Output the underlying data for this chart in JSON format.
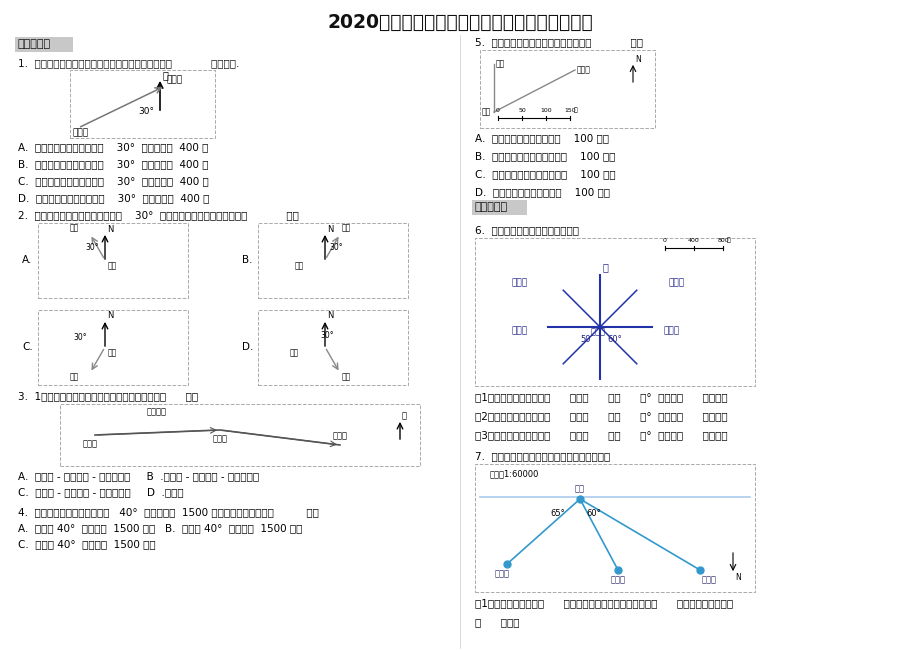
{
  "title": "2020年苏教版数学六年级下册第五单元复习试题",
  "bg_color": "#ffffff",
  "text_color": "#000000",
  "section1_label": "一、选择题",
  "section2_label": "二、填空题",
  "q1_text": "1.  如图，小明家与小红家的方向距离描述正确的是（            ）小明家.",
  "q1_A": "A.  小明：小红在我家西偏南    30°  的方向距离  400 米",
  "q1_B": "B.  小明：小红在我家南偏西    30°  的方向距离  400 米",
  "q1_C": "C.  小红：小明在我家南偏北    30°  的方向距离  400 米",
  "q1_D": "D.  小红：小明在我家北偏东    30°  的方向距离  400 米",
  "q2_text": "2.  以广场为观测点，学校在北偏西    30°  方向处，下列各图中正确的是（            ）。",
  "q3_text": "3.  1路汽车从火车站开往幸福村，前进的方向是（      ）。",
  "q3_AB": "A.  先向西 - 再向西南 - 最后向西北     B  .先向东 - 再向东南 - 最后向东北",
  "q3_CD": "C.  先向东 - 再向西南 - 最后向东北     D  .无选项",
  "q4_text": "4.  一架飞机从某机场向南偏东   40°  方向飞行了  1500 千米，返回时飞机要（          ）。",
  "q4_AB": "A.  北偏东 40°  方向飞行  1500 千米   B.  南偏西 40°  方向飞行  1500 千米",
  "q4_C": "C.  北偏西 40°  方向飞行  1500 千米",
  "q5_text": "5.  根据下图信息，下列说法错误的是（            ）。",
  "q5_A": "A.  沙坑位于大门的正北方向    100 米处",
  "q5_B": "B.  图书馆位于大门北偏西方向    100 米处",
  "q5_C": "C.  图书馆位于大门北偏东方向    100 米处",
  "q5_D": "D.  大门位于沙坑的正南方向    100 米处",
  "q6_text": "6.  下图是某市文化生活区方位图。",
  "q6_1": "（1）少年宫在电影院的（      ）偏（      ）（      ）°  方向的（      ）米处。",
  "q6_2": "（2）影视城在电影院的（      ）偏（      ）（      ）°  方向的（      ）米处。",
  "q6_3": "（3）电影院在图书馆的（      ）偏（      ）（      ）°  方向的（      ）米处。",
  "q7_text": "7.  下面是某市动物园的部分园区平面示意图。",
  "q7_1": "（1）百鸟园在大门的（      ）方向上，与大门的图上距离为（      ）厘米，实际距离为",
  "q7_2": "（      ）米。"
}
